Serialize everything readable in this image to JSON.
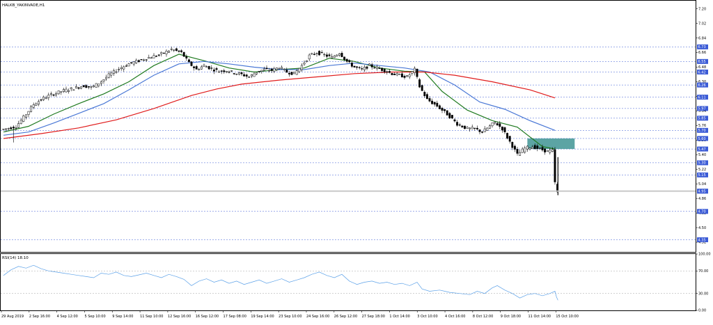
{
  "chart_data": [
    {
      "type": "candlestick",
      "title": "HALKB_YAKINVADE,H1",
      "ylim": [
        4.2,
        7.3
      ],
      "y_ticks": [
        "7.20",
        "7.02",
        "6.84",
        "6.66",
        "6.48",
        "6.30",
        "6.12",
        "5.94",
        "5.76",
        "5.58",
        "5.40",
        "5.22",
        "5.04",
        "4.86",
        "4.68",
        "4.50",
        "4.32"
      ],
      "level_lines": [
        {
          "label": "6.73",
          "value": 6.73
        },
        {
          "label": "6.55",
          "value": 6.55
        },
        {
          "label": "6.42",
          "value": 6.42
        },
        {
          "label": "6.26",
          "value": 6.26
        },
        {
          "label": "6.11",
          "value": 6.11
        },
        {
          "label": "5.97",
          "value": 5.97
        },
        {
          "label": "5.85",
          "value": 5.85
        },
        {
          "label": "5.70",
          "value": 5.7
        },
        {
          "label": "5.60",
          "value": 5.6
        },
        {
          "label": "5.47",
          "value": 5.47
        },
        {
          "label": "5.30",
          "value": 5.3
        },
        {
          "label": "5.15",
          "value": 5.15
        },
        {
          "label": "4.95",
          "value": 4.95
        },
        {
          "label": "4.70",
          "value": 4.7
        },
        {
          "label": "4.35",
          "value": 4.35
        }
      ],
      "x_labels": [
        "29 Aug 2019",
        "2 Sep 16:00",
        "4 Sep 12:00",
        "5 Sep 10:00",
        "9 Sep 14:00",
        "11 Sep 10:00",
        "12 Sep 16:00",
        "16 Sep 12:00",
        "17 Sep 08:00",
        "19 Sep 14:00",
        "23 Sep 10:00",
        "24 Sep 16:00",
        "26 Sep 12:00",
        "27 Sep 18:00",
        "1 Oct 14:00",
        "3 Oct 10:00",
        "4 Oct 16:00",
        "8 Oct 12:00",
        "9 Oct 18:00",
        "11 Oct 14:00",
        "15 Oct 10:00"
      ],
      "price_path": [
        [
          0,
          5.71
        ],
        [
          2,
          5.72
        ],
        [
          6,
          5.75
        ],
        [
          9,
          5.86
        ],
        [
          13,
          6.02
        ],
        [
          17,
          6.1
        ],
        [
          21,
          6.15
        ],
        [
          25,
          6.19
        ],
        [
          29,
          6.22
        ],
        [
          33,
          6.25
        ],
        [
          36,
          6.23
        ],
        [
          39,
          6.28
        ],
        [
          43,
          6.38
        ],
        [
          47,
          6.46
        ],
        [
          51,
          6.52
        ],
        [
          55,
          6.56
        ],
        [
          59,
          6.6
        ],
        [
          63,
          6.63
        ],
        [
          66,
          6.67
        ],
        [
          68,
          6.7
        ],
        [
          72,
          6.66
        ],
        [
          75,
          6.53
        ],
        [
          78,
          6.45
        ],
        [
          81,
          6.5
        ],
        [
          84,
          6.46
        ],
        [
          87,
          6.43
        ],
        [
          90,
          6.44
        ],
        [
          93,
          6.41
        ],
        [
          96,
          6.39
        ],
        [
          99,
          6.36
        ],
        [
          102,
          6.42
        ],
        [
          105,
          6.45
        ],
        [
          108,
          6.44
        ],
        [
          111,
          6.48
        ],
        [
          114,
          6.42
        ],
        [
          117,
          6.4
        ],
        [
          120,
          6.5
        ],
        [
          123,
          6.62
        ],
        [
          126,
          6.66
        ],
        [
          129,
          6.63
        ],
        [
          132,
          6.6
        ],
        [
          135,
          6.66
        ],
        [
          138,
          6.55
        ],
        [
          141,
          6.48
        ],
        [
          144,
          6.45
        ],
        [
          147,
          6.5
        ],
        [
          150,
          6.47
        ],
        [
          153,
          6.44
        ],
        [
          156,
          6.4
        ],
        [
          159,
          6.38
        ],
        [
          162,
          6.36
        ],
        [
          165,
          6.45
        ],
        [
          167,
          6.24
        ],
        [
          170,
          6.08
        ],
        [
          174,
          6.0
        ],
        [
          178,
          5.9
        ],
        [
          182,
          5.78
        ],
        [
          186,
          5.72
        ],
        [
          189,
          5.72
        ],
        [
          192,
          5.68
        ],
        [
          195,
          5.75
        ],
        [
          197,
          5.8
        ],
        [
          200,
          5.72
        ],
        [
          203,
          5.56
        ],
        [
          206,
          5.4
        ],
        [
          209,
          5.48
        ],
        [
          212,
          5.5
        ],
        [
          215,
          5.47
        ],
        [
          218,
          5.44
        ],
        [
          220,
          5.45
        ],
        [
          220.6,
          5.3
        ],
        [
          221.2,
          4.93
        ]
      ],
      "series": [
        {
          "name": "MA20",
          "color": "#1f7a1f",
          "values": [
            [
              0,
              5.68
            ],
            [
              10,
              5.75
            ],
            [
              20,
              5.9
            ],
            [
              30,
              6.03
            ],
            [
              40,
              6.15
            ],
            [
              50,
              6.3
            ],
            [
              60,
              6.5
            ],
            [
              70,
              6.64
            ],
            [
              80,
              6.56
            ],
            [
              90,
              6.47
            ],
            [
              100,
              6.42
            ],
            [
              110,
              6.45
            ],
            [
              120,
              6.47
            ],
            [
              130,
              6.59
            ],
            [
              140,
              6.55
            ],
            [
              150,
              6.47
            ],
            [
              160,
              6.43
            ],
            [
              168,
              6.42
            ],
            [
              175,
              6.18
            ],
            [
              185,
              5.95
            ],
            [
              195,
              5.82
            ],
            [
              205,
              5.74
            ],
            [
              215,
              5.5
            ],
            [
              220,
              5.47
            ]
          ]
        },
        {
          "name": "MA50",
          "color": "#4a78d6",
          "values": [
            [
              0,
              5.64
            ],
            [
              10,
              5.68
            ],
            [
              20,
              5.79
            ],
            [
              30,
              5.91
            ],
            [
              40,
              6.03
            ],
            [
              50,
              6.2
            ],
            [
              60,
              6.38
            ],
            [
              70,
              6.52
            ],
            [
              80,
              6.55
            ],
            [
              90,
              6.52
            ],
            [
              100,
              6.48
            ],
            [
              110,
              6.45
            ],
            [
              120,
              6.45
            ],
            [
              130,
              6.5
            ],
            [
              140,
              6.53
            ],
            [
              150,
              6.5
            ],
            [
              160,
              6.47
            ],
            [
              170,
              6.42
            ],
            [
              180,
              6.26
            ],
            [
              190,
              6.05
            ],
            [
              200,
              5.96
            ],
            [
              210,
              5.82
            ],
            [
              220,
              5.7
            ]
          ]
        },
        {
          "name": "MA200",
          "color": "#e01b1b",
          "values": [
            [
              0,
              5.6
            ],
            [
              15,
              5.66
            ],
            [
              30,
              5.73
            ],
            [
              45,
              5.83
            ],
            [
              60,
              5.97
            ],
            [
              75,
              6.13
            ],
            [
              85,
              6.21
            ],
            [
              95,
              6.27
            ],
            [
              110,
              6.32
            ],
            [
              125,
              6.36
            ],
            [
              140,
              6.4
            ],
            [
              155,
              6.42
            ],
            [
              168,
              6.42
            ],
            [
              180,
              6.38
            ],
            [
              195,
              6.3
            ],
            [
              210,
              6.2
            ],
            [
              220,
              6.1
            ]
          ]
        }
      ],
      "zone": {
        "y_from": 5.47,
        "y_to": 5.6,
        "color": "#2e8b8b"
      },
      "highlight_level": 4.95
    },
    {
      "type": "line",
      "title": "RSI(14) 18.10",
      "ylim": [
        0,
        100
      ],
      "y_ticks": [
        "100.00",
        "70.00",
        "30.00",
        "0.00"
      ],
      "levels": [
        70,
        30
      ],
      "color": "#5aa0e8",
      "values": [
        [
          0,
          62
        ],
        [
          3,
          72
        ],
        [
          6,
          78
        ],
        [
          9,
          75
        ],
        [
          12,
          80
        ],
        [
          15,
          74
        ],
        [
          18,
          70
        ],
        [
          21,
          68
        ],
        [
          24,
          66
        ],
        [
          27,
          64
        ],
        [
          30,
          62
        ],
        [
          33,
          60
        ],
        [
          36,
          58
        ],
        [
          39,
          66
        ],
        [
          42,
          64
        ],
        [
          45,
          68
        ],
        [
          48,
          62
        ],
        [
          51,
          60
        ],
        [
          54,
          63
        ],
        [
          57,
          66
        ],
        [
          60,
          62
        ],
        [
          63,
          58
        ],
        [
          66,
          64
        ],
        [
          69,
          60
        ],
        [
          72,
          55
        ],
        [
          75,
          44
        ],
        [
          78,
          52
        ],
        [
          81,
          56
        ],
        [
          84,
          50
        ],
        [
          87,
          54
        ],
        [
          90,
          48
        ],
        [
          93,
          52
        ],
        [
          96,
          46
        ],
        [
          99,
          50
        ],
        [
          102,
          54
        ],
        [
          105,
          48
        ],
        [
          108,
          52
        ],
        [
          111,
          56
        ],
        [
          114,
          50
        ],
        [
          117,
          54
        ],
        [
          120,
          58
        ],
        [
          123,
          64
        ],
        [
          126,
          68
        ],
        [
          129,
          62
        ],
        [
          132,
          58
        ],
        [
          135,
          64
        ],
        [
          138,
          52
        ],
        [
          141,
          46
        ],
        [
          144,
          50
        ],
        [
          147,
          52
        ],
        [
          150,
          48
        ],
        [
          153,
          50
        ],
        [
          156,
          46
        ],
        [
          159,
          48
        ],
        [
          162,
          44
        ],
        [
          165,
          50
        ],
        [
          167,
          38
        ],
        [
          170,
          34
        ],
        [
          174,
          36
        ],
        [
          178,
          32
        ],
        [
          182,
          30
        ],
        [
          186,
          28
        ],
        [
          189,
          34
        ],
        [
          192,
          30
        ],
        [
          195,
          40
        ],
        [
          197,
          44
        ],
        [
          200,
          36
        ],
        [
          203,
          30
        ],
        [
          206,
          22
        ],
        [
          209,
          28
        ],
        [
          212,
          30
        ],
        [
          215,
          26
        ],
        [
          218,
          30
        ],
        [
          220,
          34
        ],
        [
          220.6,
          24
        ],
        [
          221.2,
          18
        ]
      ]
    }
  ]
}
